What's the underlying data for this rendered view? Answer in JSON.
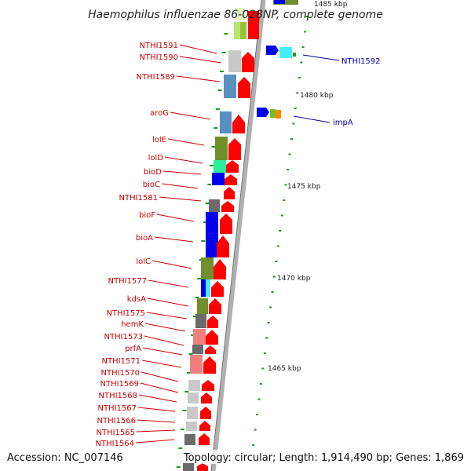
{
  "title": "Haemophilus influenzae 86-028NP, complete genome",
  "footer": {
    "accession": "Accession: NC_007146",
    "summary": "Topology: circular; Length: 1,914,490 bp; Genes: 1,869"
  },
  "scale": {
    "ticks": [
      "1485 kbp",
      "1480 kbp",
      "1475 kbp",
      "1470 kbp",
      "1465 kbp"
    ]
  },
  "forward_labels": [
    "NTHI1592",
    "impA"
  ],
  "reverse_labels": [
    "NTHI1591",
    "NTHI1590",
    "NTHI1589",
    "aroG",
    "lolE",
    "lolD",
    "bioD",
    "bioC",
    "NTHI1581",
    "bioF",
    "bioA",
    "lolC",
    "NTHI1577",
    "kdsA",
    "NTHI1575",
    "hemK",
    "NTHI1573",
    "prfA",
    "NTHI1571",
    "NTHI1570",
    "NTHI1569",
    "NTHI1568",
    "NTHI1567",
    "NTHI1566",
    "NTHI1565",
    "NTHI1564"
  ],
  "colors": {
    "backbone": "#9a9a9a",
    "reverse_arrow": "#ff0000",
    "label_red": "#cc0000",
    "label_blue": "#0000aa",
    "tick_green": "#1a9a1a"
  }
}
